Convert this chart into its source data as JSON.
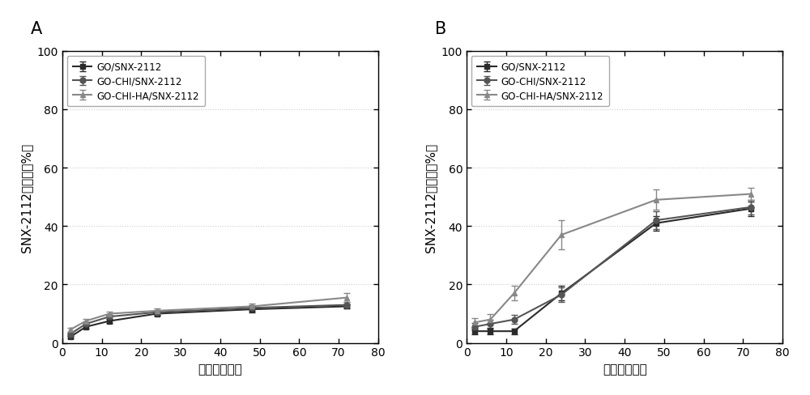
{
  "panel_A": {
    "title": "A",
    "x": [
      2,
      6,
      12,
      24,
      48,
      72
    ],
    "series": [
      {
        "label": "GO/SNX-2112",
        "y": [
          2.0,
          5.5,
          7.5,
          10.0,
          11.5,
          12.5
        ],
        "yerr": [
          0.5,
          0.6,
          0.8,
          0.7,
          1.2,
          0.8
        ],
        "color": "#2b2b2b",
        "marker": "s",
        "linestyle": "-"
      },
      {
        "label": "GO-CHI/SNX-2112",
        "y": [
          3.0,
          6.5,
          9.0,
          10.5,
          12.0,
          13.0
        ],
        "yerr": [
          0.5,
          0.6,
          0.7,
          0.8,
          0.9,
          0.9
        ],
        "color": "#555555",
        "marker": "o",
        "linestyle": "-"
      },
      {
        "label": "GO-CHI-HA/SNX-2112",
        "y": [
          4.5,
          7.5,
          10.0,
          11.0,
          12.5,
          15.5
        ],
        "yerr": [
          0.6,
          0.7,
          0.8,
          0.9,
          1.0,
          1.5
        ],
        "color": "#888888",
        "marker": "^",
        "linestyle": "-"
      }
    ],
    "xlim": [
      0,
      80
    ],
    "ylim": [
      0,
      100
    ],
    "xticks": [
      0,
      10,
      20,
      30,
      40,
      50,
      60,
      70,
      80
    ],
    "yticks": [
      0,
      20,
      40,
      60,
      80,
      100
    ],
    "xlabel": "时间（小时）",
    "ylabel": "SNX-2112释放率（%）"
  },
  "panel_B": {
    "title": "B",
    "x": [
      2,
      6,
      12,
      24,
      48,
      72
    ],
    "series": [
      {
        "label": "GO/SNX-2112",
        "y": [
          4.0,
          4.0,
          4.0,
          17.0,
          41.0,
          46.0
        ],
        "yerr": [
          1.0,
          1.2,
          1.0,
          2.5,
          2.5,
          2.5
        ],
        "color": "#2b2b2b",
        "marker": "s",
        "linestyle": "-"
      },
      {
        "label": "GO-CHI/SNX-2112",
        "y": [
          5.5,
          6.5,
          8.0,
          16.5,
          42.0,
          46.5
        ],
        "yerr": [
          1.2,
          1.5,
          1.5,
          2.5,
          3.0,
          2.5
        ],
        "color": "#555555",
        "marker": "o",
        "linestyle": "-"
      },
      {
        "label": "GO-CHI-HA/SNX-2112",
        "y": [
          7.0,
          8.0,
          17.0,
          37.0,
          49.0,
          51.0
        ],
        "yerr": [
          1.5,
          1.8,
          2.5,
          5.0,
          3.5,
          2.0
        ],
        "color": "#888888",
        "marker": "^",
        "linestyle": "-"
      }
    ],
    "xlim": [
      0,
      80
    ],
    "ylim": [
      0,
      100
    ],
    "xticks": [
      0,
      10,
      20,
      30,
      40,
      50,
      60,
      70,
      80
    ],
    "yticks": [
      0,
      20,
      40,
      60,
      80,
      100
    ],
    "xlabel": "时间（小时）",
    "ylabel": "SNX-2112释放率（%）"
  },
  "figure_bg": "#ffffff",
  "axes_bg": "#ffffff",
  "grid_color": "#cccccc",
  "line_width": 1.5,
  "marker_size": 5,
  "capsize": 3,
  "legend_fontsize": 8.5,
  "axis_fontsize": 11,
  "title_fontsize": 15,
  "tick_fontsize": 10
}
